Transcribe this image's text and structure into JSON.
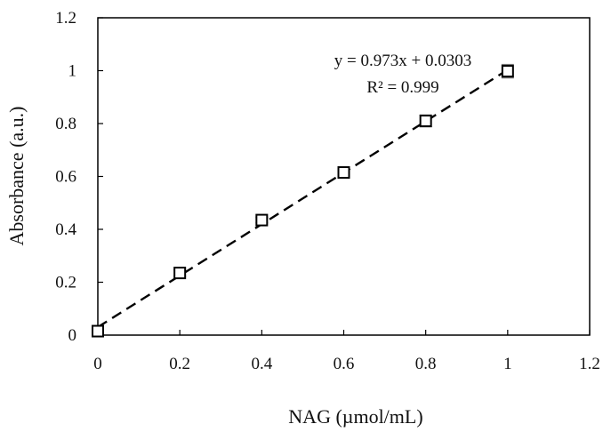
{
  "chart_data": {
    "type": "scatter",
    "title": "",
    "xlabel": "NAG (µmol/mL)",
    "ylabel": "Absorbance (a.u.)",
    "xlim": [
      0,
      1.2
    ],
    "ylim": [
      0,
      1.2
    ],
    "xticks": [
      "0",
      "0.2",
      "0.4",
      "0.6",
      "0.8",
      "1",
      "1.2"
    ],
    "yticks": [
      "0",
      "0.2",
      "0.4",
      "0.6",
      "0.8",
      "1",
      "1.2"
    ],
    "grid": false,
    "legend": "none",
    "series": [
      {
        "x": [
          0,
          0.2,
          0.4,
          0.6,
          0.8,
          1.0
        ],
        "y": [
          0.015,
          0.235,
          0.435,
          0.615,
          0.81,
          0.998
        ],
        "error": [
          0.008,
          0.012,
          0.01,
          0.012,
          0.022,
          0.025
        ],
        "marker": "open-square",
        "color": "#000000"
      }
    ],
    "trendline": {
      "slope": 0.973,
      "intercept": 0.0303,
      "x_range": [
        0,
        1.0
      ],
      "style": "dashed",
      "color": "#000000"
    },
    "annotations": [
      "y = 0.973x + 0.0303",
      "R² = 0.999"
    ]
  }
}
